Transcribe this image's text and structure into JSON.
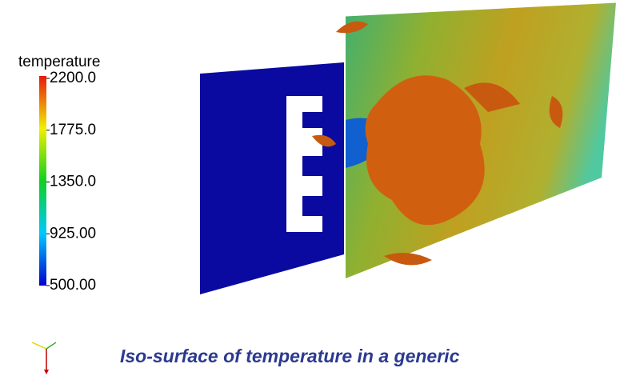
{
  "colorbar": {
    "title": "temperature",
    "range": [
      500,
      2200
    ],
    "ticks": [
      {
        "value": 2200,
        "label": "2200.0"
      },
      {
        "value": 1775,
        "label": "1775.0"
      },
      {
        "value": 1350,
        "label": "1350.0"
      },
      {
        "value": 925,
        "label": "925.00"
      },
      {
        "value": 500,
        "label": "500.00"
      }
    ]
  },
  "caption": "Iso-surface of temperature in a generic"
}
